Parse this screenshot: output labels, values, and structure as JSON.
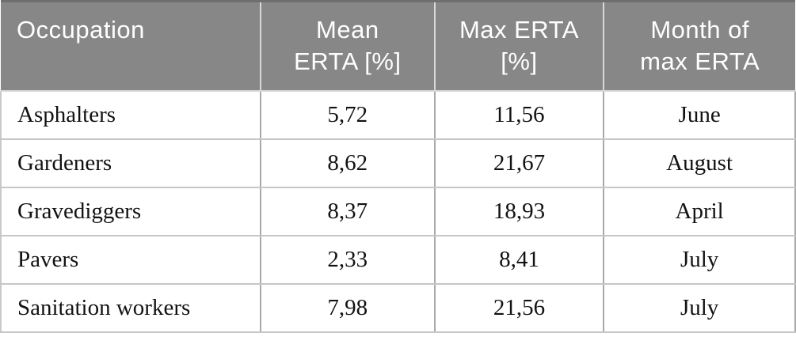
{
  "table": {
    "name": "occupational-erta-summary",
    "headers": [
      {
        "label": "Occupation",
        "lines": [
          "Occupation"
        ]
      },
      {
        "label": "Mean ERTA [%]",
        "lines": [
          "Mean",
          "ERTA [%]"
        ]
      },
      {
        "label": "Max ERTA [%]",
        "lines": [
          "Max ERTA",
          "[%]"
        ]
      },
      {
        "label": "Month of max ERTA",
        "lines": [
          "Month of",
          "max ERTA"
        ]
      }
    ],
    "rows": [
      {
        "occupation": "Asphalters",
        "mean_erta": "5,72",
        "max_erta": "11,56",
        "month_of_max": "June"
      },
      {
        "occupation": "Gardeners",
        "mean_erta": "8,62",
        "max_erta": "21,67",
        "month_of_max": "August"
      },
      {
        "occupation": "Gravediggers",
        "mean_erta": "8,37",
        "max_erta": "18,93",
        "month_of_max": "April"
      },
      {
        "occupation": "Pavers",
        "mean_erta": "2,33",
        "max_erta": "8,41",
        "month_of_max": "July"
      },
      {
        "occupation": "Sanitation workers",
        "mean_erta": "7,98",
        "max_erta": "21,56",
        "month_of_max": "July"
      }
    ]
  },
  "chart_data": {
    "type": "table",
    "columns": [
      "Occupation",
      "Mean ERTA [%]",
      "Max ERTA [%]",
      "Month of max ERTA"
    ],
    "rows": [
      [
        "Asphalters",
        "5,72",
        "11,56",
        "June"
      ],
      [
        "Gardeners",
        "8,62",
        "21,67",
        "August"
      ],
      [
        "Gravediggers",
        "8,37",
        "18,93",
        "April"
      ],
      [
        "Pavers",
        "2,33",
        "8,41",
        "July"
      ],
      [
        "Sanitation workers",
        "7,98",
        "21,56",
        "July"
      ]
    ]
  },
  "colors": {
    "header_bg": "#878787",
    "header_text": "#ffffff",
    "header_divider": "#d8d8d8",
    "header_top_edge": "#6f6f6f",
    "grid_vertical": "#a9a9a9",
    "grid_horizontal": "#c6c6c6",
    "body_text": "#121212",
    "row_bg": "#ffffff"
  }
}
